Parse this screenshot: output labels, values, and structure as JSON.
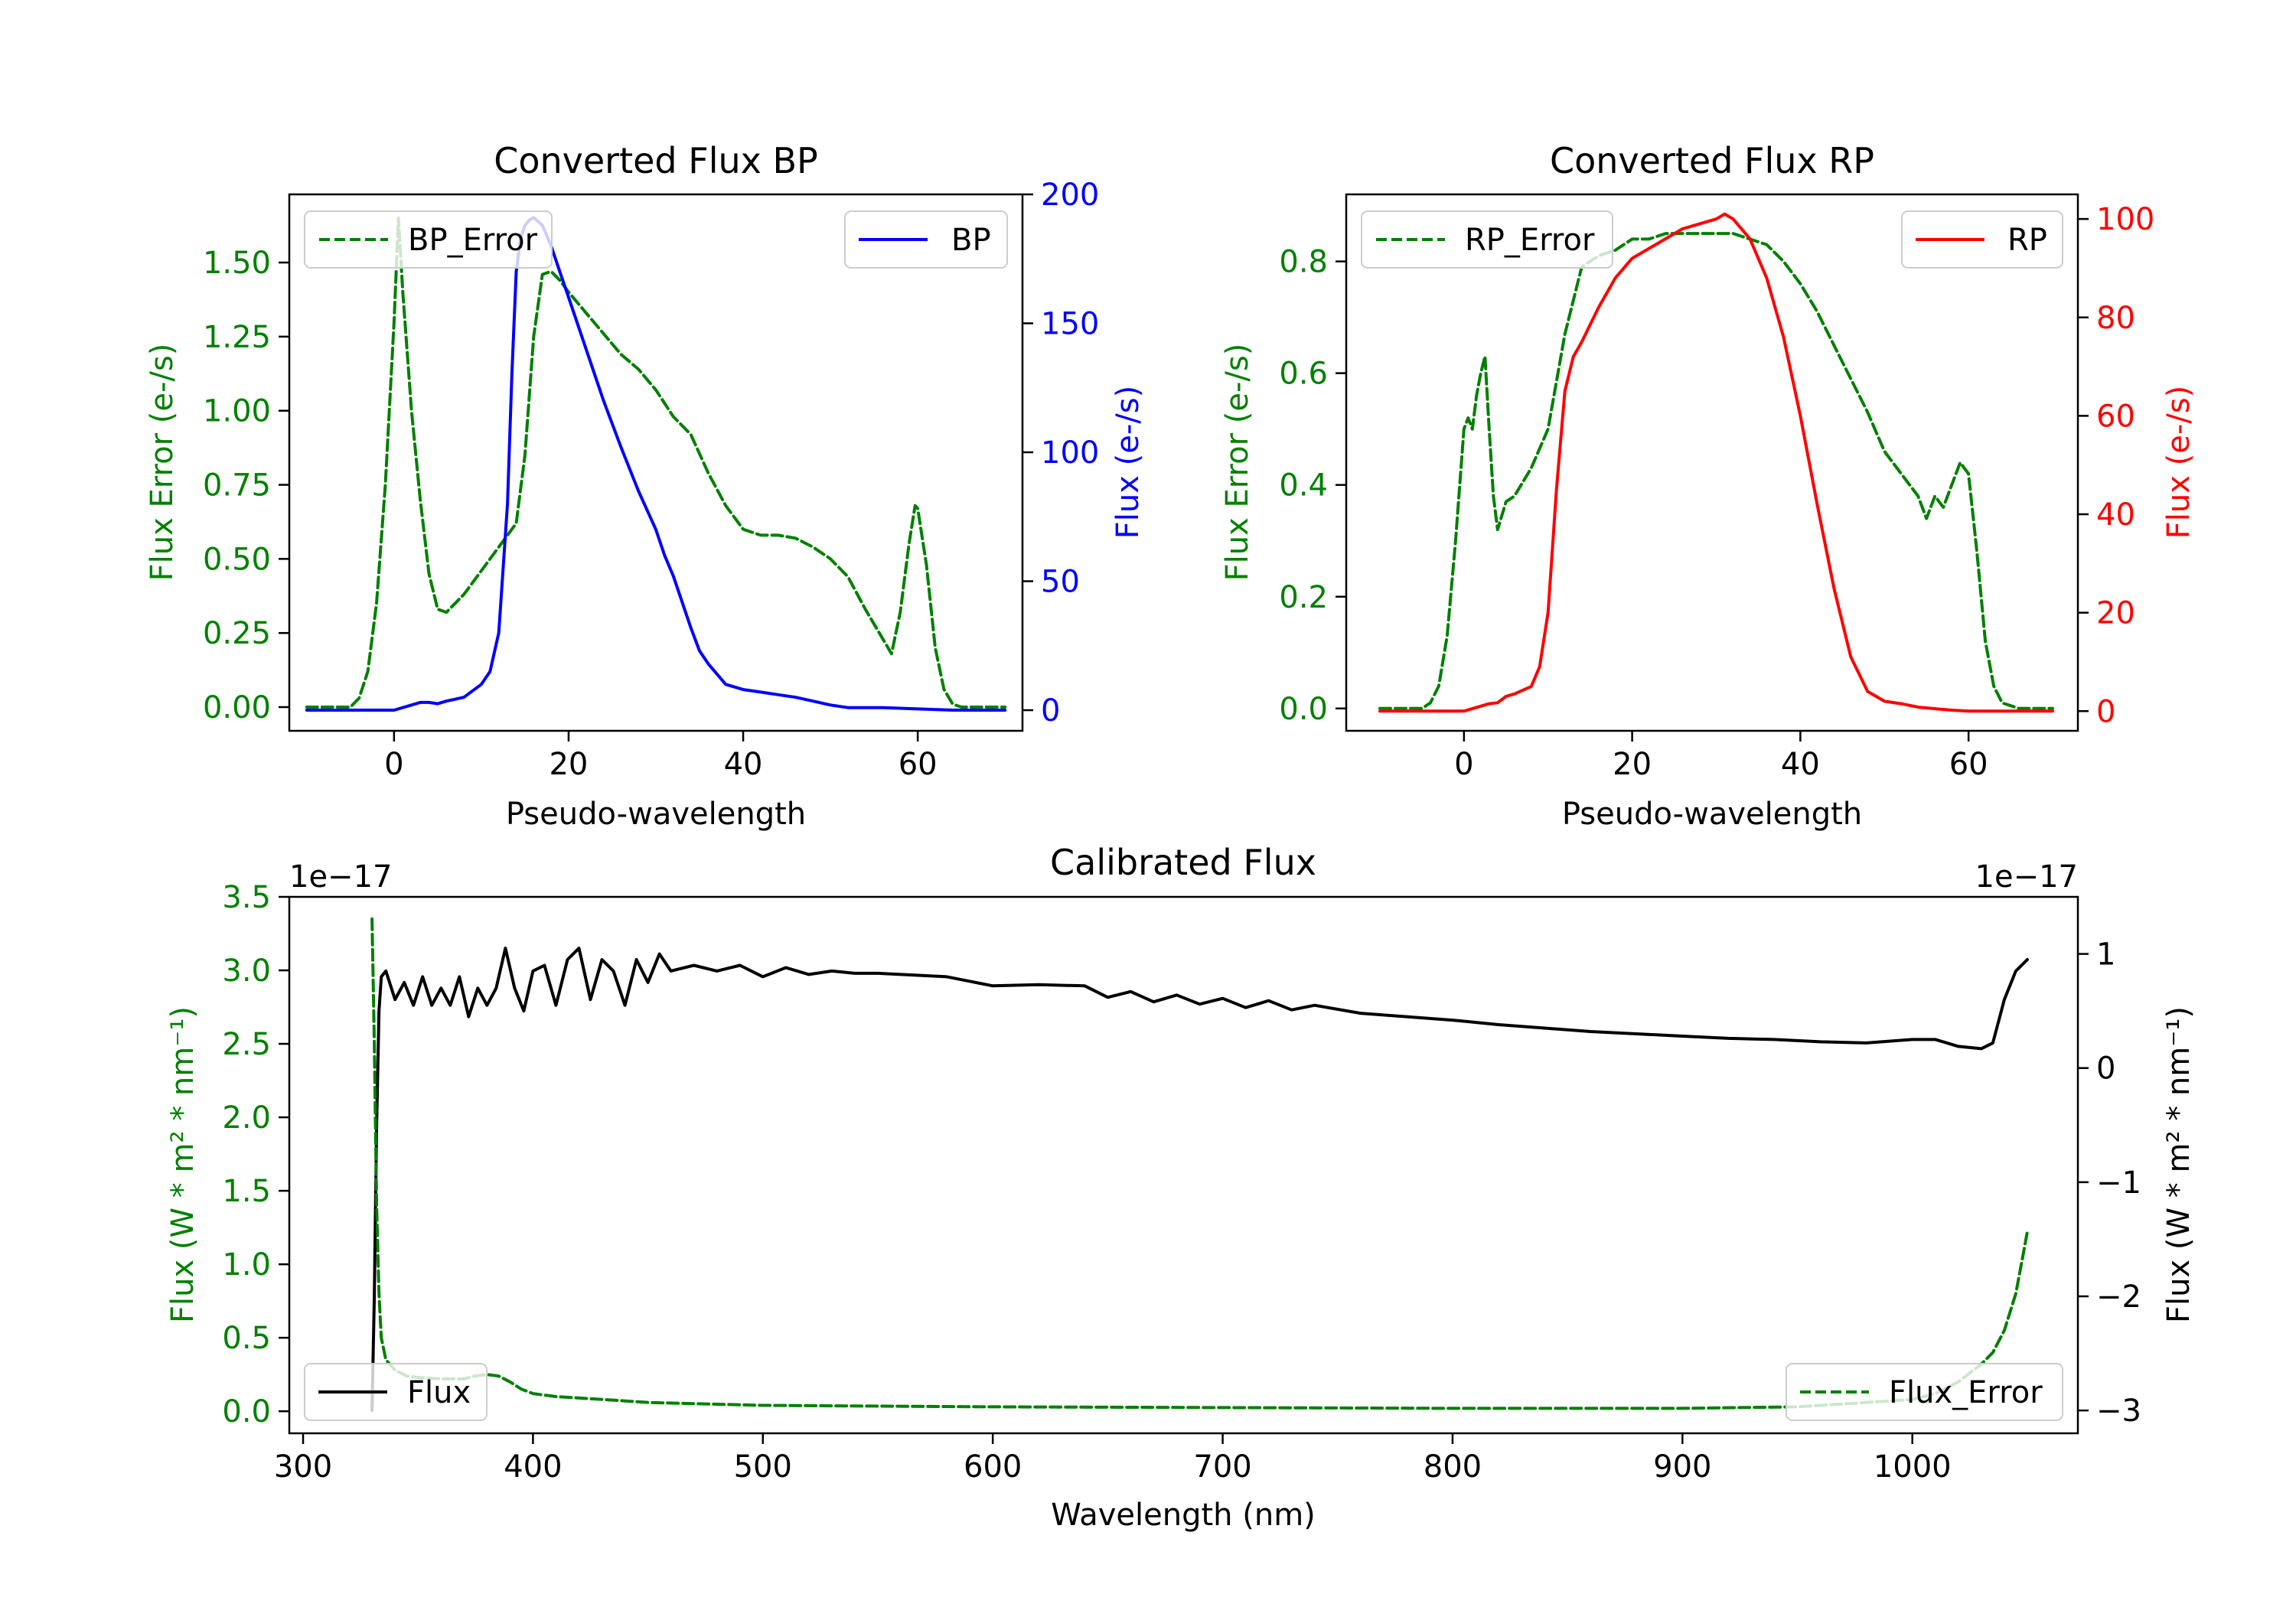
{
  "colors": {
    "error": "#008000",
    "bp": "#0000ff",
    "rp": "#ff0000",
    "flux": "#000000",
    "axis": "#000000",
    "legend_border": "#cccccc"
  },
  "chart_data": [
    {
      "id": "bp",
      "type": "line",
      "title": "Converted Flux BP",
      "xlabel": "Pseudo-wavelength",
      "ylabel_left": "Flux Error (e-/s)",
      "ylabel_right": "Flux (e-/s)",
      "xlim": [
        -12,
        72
      ],
      "ylim_left": [
        -0.08,
        1.73
      ],
      "ylim_right": [
        -8,
        200
      ],
      "xticks": [
        {
          "v": 0,
          "label": "0"
        },
        {
          "v": 20,
          "label": "20"
        },
        {
          "v": 40,
          "label": "40"
        },
        {
          "v": 60,
          "label": "60"
        }
      ],
      "yticks_left": [
        {
          "v": 0,
          "label": "0.00"
        },
        {
          "v": 0.25,
          "label": "0.25"
        },
        {
          "v": 0.5,
          "label": "0.50"
        },
        {
          "v": 0.75,
          "label": "0.75"
        },
        {
          "v": 1.0,
          "label": "1.00"
        },
        {
          "v": 1.25,
          "label": "1.25"
        },
        {
          "v": 1.5,
          "label": "1.50"
        }
      ],
      "yticks_right": [
        {
          "v": 0,
          "label": "0"
        },
        {
          "v": 50,
          "label": "50"
        },
        {
          "v": 100,
          "label": "100"
        },
        {
          "v": 150,
          "label": "150"
        },
        {
          "v": 200,
          "label": "200"
        }
      ],
      "legend_left": "BP_Error",
      "legend_right": "BP",
      "series": [
        {
          "name": "BP_Error",
          "axis": "left",
          "style": "dashed",
          "color_key": "error",
          "x": [
            -10,
            -5,
            -4,
            -3,
            -2,
            -1,
            0,
            0.5,
            1,
            2,
            3,
            4,
            5,
            6,
            8,
            10,
            12,
            14,
            15,
            16,
            17,
            18,
            19,
            20,
            22,
            24,
            26,
            28,
            30,
            32,
            34,
            36,
            38,
            40,
            42,
            44,
            46,
            48,
            50,
            52,
            54,
            56,
            57,
            58,
            59,
            59.7,
            60,
            61,
            62,
            63,
            64,
            65,
            66,
            68,
            70
          ],
          "y": [
            0,
            0,
            0.03,
            0.12,
            0.35,
            0.75,
            1.3,
            1.65,
            1.4,
            1.0,
            0.7,
            0.45,
            0.33,
            0.32,
            0.38,
            0.46,
            0.54,
            0.62,
            0.85,
            1.25,
            1.46,
            1.47,
            1.44,
            1.4,
            1.33,
            1.26,
            1.19,
            1.14,
            1.07,
            0.98,
            0.92,
            0.79,
            0.68,
            0.6,
            0.58,
            0.58,
            0.57,
            0.54,
            0.5,
            0.44,
            0.33,
            0.23,
            0.18,
            0.32,
            0.55,
            0.68,
            0.67,
            0.48,
            0.2,
            0.06,
            0.01,
            0,
            0,
            0,
            0
          ]
        },
        {
          "name": "BP",
          "axis": "right",
          "style": "solid",
          "color_key": "bp",
          "x": [
            -10,
            -5,
            -2,
            0,
            2,
            3,
            4,
            5,
            6,
            8,
            10,
            11,
            12,
            13,
            13.5,
            14,
            14.5,
            15,
            15.5,
            16,
            17,
            18,
            19,
            20,
            22,
            24,
            26,
            28,
            30,
            31,
            32,
            33,
            34,
            35,
            36,
            38,
            40,
            42,
            44,
            46,
            48,
            50,
            52,
            56,
            60,
            64,
            70
          ],
          "y": [
            0,
            0,
            0,
            0,
            2,
            3,
            3,
            2.5,
            3.5,
            5,
            10,
            15,
            30,
            80,
            130,
            170,
            183,
            188,
            190,
            191,
            188,
            180,
            170,
            160,
            140,
            120,
            102,
            85,
            70,
            60,
            52,
            42,
            32,
            23,
            18,
            10,
            8,
            7,
            6,
            5,
            3.5,
            2,
            1,
            1,
            0.5,
            0,
            0
          ]
        }
      ]
    },
    {
      "id": "rp",
      "type": "line",
      "title": "Converted Flux RP",
      "xlabel": "Pseudo-wavelength",
      "ylabel_left": "Flux Error (e-/s)",
      "ylabel_right": "Flux (e-/s)",
      "xlim": [
        -14,
        73
      ],
      "ylim_left": [
        -0.04,
        0.92
      ],
      "ylim_right": [
        -4,
        105
      ],
      "xticks": [
        {
          "v": 0,
          "label": "0"
        },
        {
          "v": 20,
          "label": "20"
        },
        {
          "v": 40,
          "label": "40"
        },
        {
          "v": 60,
          "label": "60"
        }
      ],
      "yticks_left": [
        {
          "v": 0,
          "label": "0.0"
        },
        {
          "v": 0.2,
          "label": "0.2"
        },
        {
          "v": 0.4,
          "label": "0.4"
        },
        {
          "v": 0.6,
          "label": "0.6"
        },
        {
          "v": 0.8,
          "label": "0.8"
        }
      ],
      "yticks_right": [
        {
          "v": 0,
          "label": "0"
        },
        {
          "v": 20,
          "label": "20"
        },
        {
          "v": 40,
          "label": "40"
        },
        {
          "v": 60,
          "label": "60"
        },
        {
          "v": 80,
          "label": "80"
        },
        {
          "v": 100,
          "label": "100"
        }
      ],
      "legend_left": "RP_Error",
      "legend_right": "RP",
      "series": [
        {
          "name": "RP_Error",
          "axis": "left",
          "style": "dashed",
          "color_key": "error",
          "x": [
            -10,
            -5,
            -4,
            -3,
            -2,
            -1,
            0,
            0.5,
            1,
            1.5,
            2,
            2.5,
            3,
            3.5,
            4,
            5,
            6,
            8,
            10,
            12,
            14,
            16,
            18,
            20,
            22,
            24,
            26,
            28,
            30,
            32,
            34,
            36,
            38,
            40,
            42,
            44,
            46,
            48,
            50,
            52,
            54,
            55,
            56,
            57,
            58,
            59,
            60,
            61,
            62,
            63,
            64,
            66,
            70
          ],
          "y": [
            0,
            0,
            0.01,
            0.04,
            0.13,
            0.3,
            0.5,
            0.52,
            0.5,
            0.56,
            0.6,
            0.63,
            0.5,
            0.38,
            0.32,
            0.37,
            0.38,
            0.43,
            0.5,
            0.67,
            0.79,
            0.81,
            0.82,
            0.84,
            0.84,
            0.85,
            0.85,
            0.85,
            0.85,
            0.85,
            0.84,
            0.83,
            0.8,
            0.76,
            0.71,
            0.65,
            0.59,
            0.53,
            0.46,
            0.42,
            0.38,
            0.34,
            0.38,
            0.36,
            0.4,
            0.44,
            0.42,
            0.28,
            0.12,
            0.04,
            0.01,
            0,
            0
          ]
        },
        {
          "name": "RP",
          "axis": "right",
          "style": "solid",
          "color_key": "rp",
          "x": [
            -10,
            -5,
            -2,
            0,
            2,
            3,
            4,
            5,
            6,
            8,
            9,
            10,
            11,
            12,
            13,
            14,
            16,
            18,
            20,
            22,
            24,
            26,
            28,
            30,
            31,
            32,
            34,
            36,
            38,
            40,
            42,
            44,
            46,
            48,
            50,
            52,
            54,
            56,
            58,
            60,
            64,
            70
          ],
          "y": [
            0,
            0,
            0,
            0,
            1,
            1.5,
            1.7,
            3,
            3.5,
            5,
            9,
            20,
            45,
            65,
            72,
            75,
            82,
            88,
            92,
            94,
            96,
            98,
            99,
            100,
            101,
            100,
            96,
            88,
            76,
            60,
            42,
            25,
            11,
            4,
            2,
            1.5,
            0.8,
            0.5,
            0.2,
            0,
            0,
            0
          ]
        }
      ]
    },
    {
      "id": "calibrated",
      "type": "line",
      "title": "Calibrated Flux",
      "xlabel": "Wavelength (nm)",
      "ylabel_left": "Flux (W * m² * nm⁻¹)",
      "ylabel_right": "Flux (W * m² * nm⁻¹)",
      "exponent_left": "1e−17",
      "exponent_right": "1e−17",
      "xlim": [
        294,
        1072
      ],
      "ylim_left": [
        -0.15,
        3.5
      ],
      "ylim_right": [
        -3.2,
        1.5
      ],
      "xticks": [
        {
          "v": 300,
          "label": "300"
        },
        {
          "v": 400,
          "label": "400"
        },
        {
          "v": 500,
          "label": "500"
        },
        {
          "v": 600,
          "label": "600"
        },
        {
          "v": 700,
          "label": "700"
        },
        {
          "v": 800,
          "label": "800"
        },
        {
          "v": 900,
          "label": "900"
        },
        {
          "v": 1000,
          "label": "1000"
        }
      ],
      "yticks_left": [
        {
          "v": 0,
          "label": "0.0"
        },
        {
          "v": 0.5,
          "label": "0.5"
        },
        {
          "v": 1.0,
          "label": "1.0"
        },
        {
          "v": 1.5,
          "label": "1.5"
        },
        {
          "v": 2.0,
          "label": "2.0"
        },
        {
          "v": 2.5,
          "label": "2.5"
        },
        {
          "v": 3.0,
          "label": "3.0"
        },
        {
          "v": 3.5,
          "label": "3.5"
        }
      ],
      "yticks_right": [
        {
          "v": -3,
          "label": "−3"
        },
        {
          "v": -2,
          "label": "−2"
        },
        {
          "v": -1,
          "label": "−1"
        },
        {
          "v": 0,
          "label": "0"
        },
        {
          "v": 1,
          "label": "1"
        }
      ],
      "legend_left": "Flux",
      "legend_right": "Flux_Error",
      "series": [
        {
          "name": "Flux",
          "axis": "right",
          "style": "solid",
          "color_key": "flux",
          "x": [
            330,
            331,
            332,
            333,
            334,
            336,
            340,
            344,
            348,
            352,
            356,
            360,
            364,
            368,
            372,
            376,
            380,
            384,
            388,
            392,
            396,
            400,
            405,
            410,
            415,
            420,
            425,
            430,
            435,
            440,
            445,
            450,
            455,
            460,
            470,
            480,
            490,
            500,
            510,
            520,
            530,
            540,
            550,
            560,
            580,
            600,
            620,
            640,
            650,
            660,
            670,
            680,
            690,
            700,
            710,
            720,
            730,
            740,
            760,
            780,
            800,
            820,
            840,
            860,
            880,
            900,
            920,
            940,
            960,
            980,
            1000,
            1010,
            1020,
            1030,
            1035,
            1040,
            1045,
            1050
          ],
          "y": [
            -3.0,
            -2.0,
            -0.5,
            0.5,
            0.8,
            0.85,
            0.6,
            0.75,
            0.55,
            0.8,
            0.55,
            0.7,
            0.55,
            0.8,
            0.45,
            0.7,
            0.55,
            0.7,
            1.05,
            0.7,
            0.5,
            0.85,
            0.9,
            0.55,
            0.95,
            1.05,
            0.6,
            0.95,
            0.85,
            0.55,
            0.95,
            0.75,
            1.0,
            0.85,
            0.9,
            0.85,
            0.9,
            0.8,
            0.88,
            0.82,
            0.85,
            0.83,
            0.83,
            0.82,
            0.8,
            0.72,
            0.73,
            0.72,
            0.62,
            0.67,
            0.58,
            0.64,
            0.56,
            0.61,
            0.53,
            0.59,
            0.51,
            0.55,
            0.48,
            0.45,
            0.42,
            0.38,
            0.35,
            0.32,
            0.3,
            0.28,
            0.26,
            0.25,
            0.23,
            0.22,
            0.25,
            0.25,
            0.19,
            0.17,
            0.22,
            0.6,
            0.85,
            0.95
          ]
        },
        {
          "name": "Flux_Error",
          "axis": "left",
          "style": "dashed",
          "color_key": "error",
          "x": [
            330,
            331,
            332,
            333,
            334,
            336,
            340,
            345,
            350,
            360,
            370,
            375,
            380,
            385,
            390,
            395,
            400,
            410,
            420,
            430,
            440,
            450,
            500,
            600,
            700,
            800,
            900,
            950,
            1000,
            1010,
            1020,
            1030,
            1035,
            1040,
            1045,
            1048,
            1050
          ],
          "y": [
            3.35,
            2.5,
            1.4,
            0.8,
            0.5,
            0.35,
            0.28,
            0.24,
            0.23,
            0.22,
            0.22,
            0.24,
            0.25,
            0.24,
            0.2,
            0.15,
            0.12,
            0.1,
            0.09,
            0.08,
            0.07,
            0.06,
            0.04,
            0.03,
            0.025,
            0.02,
            0.02,
            0.03,
            0.08,
            0.12,
            0.2,
            0.32,
            0.4,
            0.55,
            0.8,
            1.05,
            1.22
          ]
        }
      ]
    }
  ]
}
